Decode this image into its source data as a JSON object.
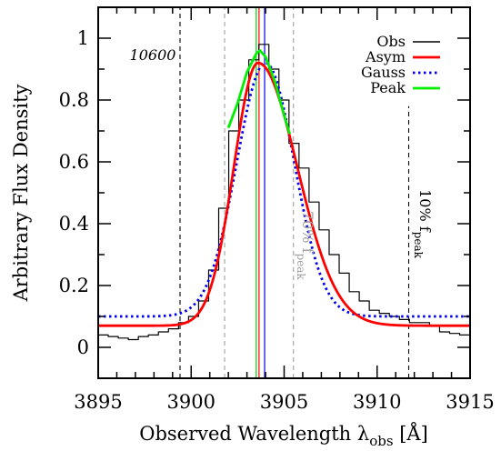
{
  "chart_data": {
    "type": "line",
    "title": "",
    "xlabel": "Observed Wavelength λ",
    "xlabel_sub": "obs",
    "xlabel_unit": " [Å]",
    "ylabel": "Arbitrary Flux Density",
    "xlim": [
      3895,
      3915
    ],
    "ylim": [
      -0.1,
      1.1
    ],
    "x_ticks": [
      3895,
      3900,
      3905,
      3910,
      3915
    ],
    "x_tick_labels": [
      "3895",
      "3900",
      "3905",
      "3910",
      "3915"
    ],
    "y_ticks": [
      0,
      0.2,
      0.4,
      0.6,
      0.8,
      1.0
    ],
    "y_tick_labels": [
      "0",
      "0.2",
      "0.4",
      "0.6",
      "0.8",
      "1"
    ],
    "legend_placement": "top-right",
    "object_label": "10600",
    "series": [
      {
        "name": "Obs",
        "style": "step",
        "color": "#000000",
        "x": [
          3895.0,
          3895.54,
          3896.08,
          3896.62,
          3897.16,
          3897.7,
          3898.24,
          3898.78,
          3899.32,
          3899.86,
          3900.4,
          3900.94,
          3901.48,
          3902.02,
          3902.56,
          3903.1,
          3903.64,
          3904.18,
          3904.72,
          3905.26,
          3905.8,
          3906.34,
          3906.88,
          3907.42,
          3907.96,
          3908.5,
          3909.04,
          3909.58,
          3910.12,
          3910.66,
          3911.2,
          3911.74,
          3912.28,
          3912.82,
          3913.36,
          3913.9,
          3914.44
        ],
        "y": [
          0.04,
          0.035,
          0.03,
          0.025,
          0.035,
          0.04,
          0.05,
          0.06,
          0.08,
          0.1,
          0.15,
          0.25,
          0.45,
          0.7,
          0.8,
          0.93,
          0.98,
          0.9,
          0.8,
          0.66,
          0.58,
          0.47,
          0.38,
          0.3,
          0.24,
          0.18,
          0.15,
          0.12,
          0.11,
          0.1,
          0.09,
          0.08,
          0.08,
          0.07,
          0.05,
          0.045,
          0.04
        ]
      },
      {
        "name": "Asym",
        "style": "solid",
        "color": "#ff0000",
        "model": "asymmetric-gaussian",
        "peak": 3903.6,
        "amplitude": 0.85,
        "baseline": 0.07,
        "sigma_blue": 1.3,
        "sigma_red": 2.1
      },
      {
        "name": "Gauss",
        "style": "dotted",
        "color": "#0000ee",
        "model": "gaussian",
        "center": 3904.0,
        "amplitude": 0.82,
        "baseline": 0.1,
        "sigma": 1.55
      },
      {
        "name": "Peak",
        "style": "solid",
        "color": "#00ee00",
        "x": [
          3902.0,
          3902.5,
          3903.0,
          3903.5,
          3903.7,
          3904.0,
          3904.5,
          3905.0,
          3905.3
        ],
        "y": [
          0.71,
          0.79,
          0.89,
          0.95,
          0.96,
          0.94,
          0.86,
          0.75,
          0.69
        ]
      }
    ],
    "vertical_lines": [
      {
        "x": 3899.4,
        "color": "#000000",
        "style": "dashed",
        "y_top": 1.1
      },
      {
        "x": 3911.7,
        "color": "#000000",
        "style": "dashed",
        "y_top": 0.78
      },
      {
        "x": 3901.8,
        "color": "#a0a0a0",
        "style": "dashed",
        "y_top": 1.1
      },
      {
        "x": 3905.5,
        "color": "#a0a0a0",
        "style": "dashed",
        "y_top": 1.1
      },
      {
        "x": 3903.5,
        "color": "#00cc00",
        "style": "solid",
        "y_top": 1.1
      },
      {
        "x": 3903.65,
        "color": "#ff0000",
        "style": "solid",
        "y_top": 1.1
      },
      {
        "x": 3903.95,
        "color": "#0000ee",
        "style": "solid",
        "y_top": 1.1
      }
    ],
    "annotations": [
      {
        "id": "level70",
        "text": "70% f",
        "sub": "peak",
        "color": "#a0a0a0",
        "x": 3906.0,
        "y": 0.33
      },
      {
        "id": "level10",
        "text": "10% f",
        "sub": "peak",
        "color": "#000000",
        "x": 3912.3,
        "y": 0.4
      }
    ]
  }
}
